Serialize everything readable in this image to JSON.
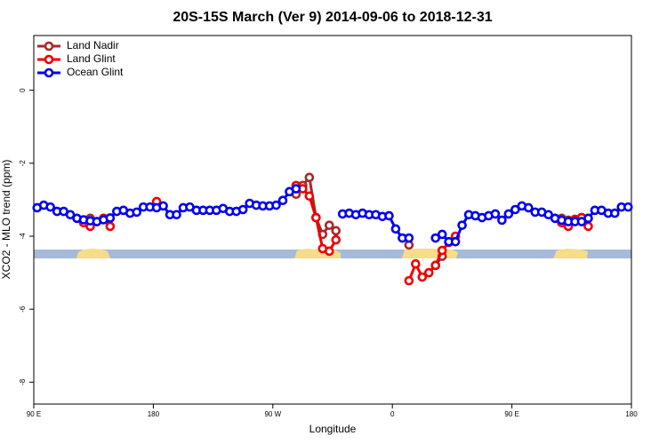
{
  "chart_data": {
    "type": "line",
    "title": "20S-15S March (Ver 9)   2014-09-06 to 2018-12-31",
    "xlabel": "Longitude",
    "ylabel": "XCO2 - MLO trend (ppm)",
    "x": [
      92.5,
      97.5,
      102.5,
      107.5,
      112.5,
      117.5,
      122.5,
      127.5,
      132.5,
      137.5,
      142.5,
      147.5,
      152.5,
      157.5,
      162.5,
      167.5,
      172.5,
      177.5,
      182.5,
      187.5,
      192.5,
      197.5,
      202.5,
      207.5,
      212.5,
      217.5,
      222.5,
      227.5,
      232.5,
      237.5,
      242.5,
      247.5,
      252.5,
      257.5,
      262.5,
      267.5,
      272.5,
      277.5,
      282.5,
      287.5,
      292.5,
      297.5,
      302.5,
      307.5,
      312.5,
      317.5,
      322.5,
      327.5,
      332.5,
      337.5,
      342.5,
      347.5,
      352.5,
      357.5,
      362.5,
      367.5,
      372.5,
      377.5,
      382.5,
      387.5,
      392.5,
      397.5,
      402.5,
      407.5,
      412.5,
      417.5,
      422.5,
      427.5,
      432.5,
      437.5,
      442.5,
      447.5,
      452.5,
      457.5,
      462.5,
      467.5,
      472.5,
      477.5,
      482.5,
      487.5,
      492.5,
      497.5,
      502.5,
      507.5,
      512.5,
      517.5,
      522.5,
      527.5,
      532.5,
      537.5
    ],
    "series": [
      {
        "name": "Land Nadir",
        "color": "#a52a2a",
        "values": [
          null,
          null,
          null,
          null,
          null,
          null,
          null,
          -3.56,
          -3.51,
          null,
          null,
          null,
          null,
          null,
          null,
          null,
          null,
          null,
          null,
          null,
          null,
          null,
          null,
          null,
          null,
          null,
          null,
          null,
          null,
          null,
          null,
          null,
          null,
          null,
          null,
          null,
          null,
          null,
          null,
          -2.85,
          -2.61,
          -2.39,
          -3.49,
          -3.95,
          -3.7,
          -3.85,
          null,
          null,
          null,
          null,
          null,
          null,
          null,
          null,
          null,
          null,
          -4.24,
          null,
          null,
          null,
          -4.8,
          -4.55,
          null,
          null,
          null,
          null,
          null,
          null,
          null,
          null,
          null,
          null,
          null,
          null,
          null,
          null,
          null,
          null,
          null,
          -3.51,
          -3.56,
          -3.54,
          -3.49,
          null,
          null,
          null,
          null,
          null,
          null,
          null
        ]
      },
      {
        "name": "Land Glint",
        "color": "#ee0000",
        "values": [
          null,
          null,
          null,
          null,
          null,
          null,
          null,
          -3.63,
          -3.73,
          -3.6,
          -3.51,
          -3.73,
          null,
          null,
          null,
          null,
          null,
          null,
          -3.05,
          null,
          null,
          null,
          null,
          null,
          null,
          null,
          null,
          null,
          null,
          null,
          null,
          null,
          null,
          null,
          null,
          null,
          null,
          null,
          null,
          -2.61,
          -2.7,
          -2.9,
          -3.49,
          -4.34,
          -4.41,
          -4.1,
          null,
          null,
          null,
          null,
          null,
          null,
          null,
          null,
          null,
          null,
          -5.22,
          -4.76,
          -5.12,
          -5.0,
          -4.8,
          -4.39,
          -4.17,
          -4.0,
          null,
          null,
          null,
          null,
          null,
          null,
          null,
          null,
          null,
          null,
          null,
          null,
          null,
          null,
          null,
          -3.63,
          -3.73,
          -3.54,
          -3.49,
          -3.73,
          null,
          null,
          null,
          null,
          null,
          null
        ]
      },
      {
        "name": "Ocean Glint",
        "color": "#0000ee",
        "values": [
          -3.22,
          -3.15,
          -3.2,
          -3.32,
          -3.32,
          -3.41,
          -3.51,
          -3.55,
          -3.58,
          -3.6,
          -3.55,
          -3.5,
          -3.32,
          -3.29,
          -3.37,
          -3.34,
          -3.2,
          -3.2,
          -3.22,
          -3.17,
          -3.41,
          -3.41,
          -3.22,
          -3.2,
          -3.29,
          -3.29,
          -3.29,
          -3.29,
          -3.24,
          -3.32,
          -3.32,
          -3.27,
          -3.1,
          -3.15,
          -3.17,
          -3.17,
          -3.15,
          -3.02,
          -2.78,
          -2.7,
          null,
          null,
          null,
          null,
          null,
          null,
          -3.39,
          -3.37,
          -3.41,
          -3.37,
          -3.41,
          -3.41,
          -3.46,
          -3.44,
          -3.8,
          -4.05,
          -4.05,
          null,
          null,
          null,
          -4.05,
          -3.95,
          -4.15,
          -4.15,
          -3.7,
          -3.41,
          -3.44,
          -3.49,
          -3.44,
          -3.39,
          -3.56,
          -3.39,
          -3.27,
          -3.17,
          -3.22,
          -3.34,
          -3.34,
          -3.41,
          -3.51,
          -3.56,
          -3.6,
          -3.6,
          -3.6,
          -3.51,
          -3.29,
          -3.29,
          -3.37,
          -3.37,
          -3.2,
          -3.2
        ]
      }
    ],
    "xlim": [
      90,
      540
    ],
    "xticks": [
      {
        "value": 90,
        "label": "90 E"
      },
      180,
      {
        "value": 270,
        "label": "90 W"
      },
      {
        "value": 360,
        "label": "0"
      },
      {
        "value": 450,
        "label": "90 E"
      },
      {
        "value": 540,
        "label": "180"
      }
    ],
    "ylim": [
      -8.6,
      1.5
    ],
    "yticks": [
      0,
      -2,
      -4,
      -6,
      -8
    ],
    "legend": "top-left"
  }
}
